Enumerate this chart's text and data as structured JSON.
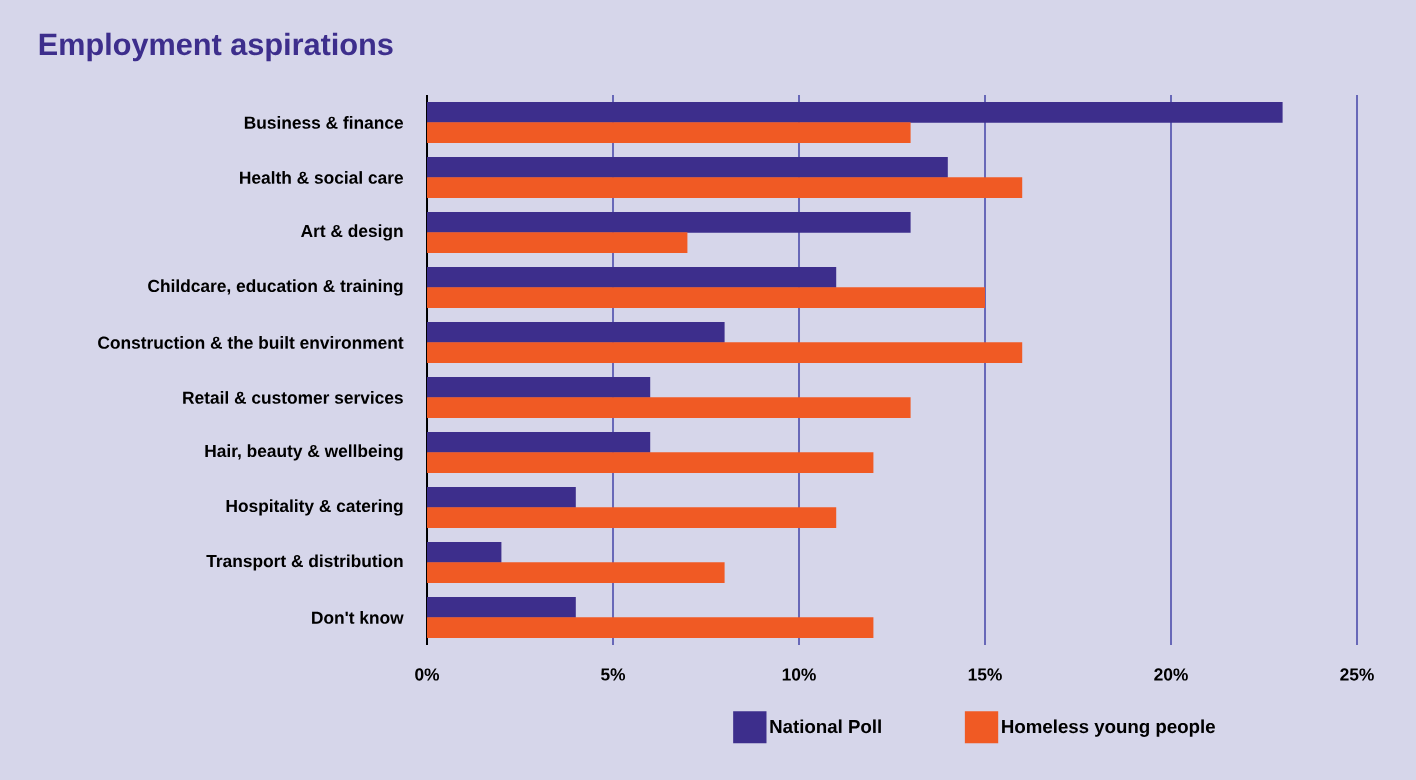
{
  "chart_data": {
    "type": "bar",
    "orientation": "horizontal",
    "title": "Employment aspirations",
    "categories": [
      "Business & finance",
      "Health & social care",
      "Art & design",
      "Childcare, education & training",
      "Construction & the built environment",
      "Retail & customer services",
      "Hair, beauty & wellbeing",
      "Hospitality & catering",
      "Transport & distribution",
      "Don't know"
    ],
    "series": [
      {
        "name": "National Poll",
        "color": "#3d2e8c",
        "values": [
          23,
          14,
          13,
          11,
          8,
          6,
          6,
          4,
          2,
          4
        ]
      },
      {
        "name": "Homeless young people",
        "color": "#f05a24",
        "values": [
          13,
          16,
          7,
          15,
          16,
          13,
          12,
          11,
          8,
          12
        ]
      }
    ],
    "xlim": [
      0,
      25
    ],
    "xticks": [
      {
        "value": 0,
        "label": "0%"
      },
      {
        "value": 5,
        "label": "5%"
      },
      {
        "value": 10,
        "label": "10%"
      },
      {
        "value": 15,
        "label": "15%"
      },
      {
        "value": 20,
        "label": "20%"
      },
      {
        "value": 25,
        "label": "25%"
      }
    ],
    "grid": "x",
    "legend": "bottom"
  }
}
